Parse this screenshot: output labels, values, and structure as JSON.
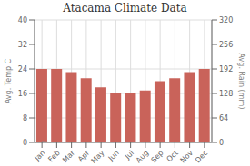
{
  "chart_data": {
    "type": "bar",
    "title": "Atacama Climate Data",
    "categories": [
      "Jan",
      "Feb",
      "Mar",
      "Apr",
      "May",
      "Jun",
      "Jul",
      "Aug",
      "Sep",
      "Oct",
      "Nov",
      "Dec"
    ],
    "series": [
      {
        "type": "bar",
        "color": "#c9635a",
        "values": [
          24,
          24,
          23,
          21,
          18,
          16,
          16,
          17,
          20,
          21,
          23,
          24
        ]
      },
      {
        "type": "line",
        "color": "#4aacb8",
        "axis": "y2",
        "values": [
          1,
          0,
          0,
          0,
          0,
          0,
          0,
          0,
          0,
          0,
          0,
          0
        ]
      }
    ],
    "y_label": "Avg. Temp C",
    "y2_label": "Avg. Rain (mm)",
    "ylim": [
      0,
      40
    ],
    "yticks": [
      0,
      8,
      16,
      24,
      32,
      40
    ],
    "y2lim": [
      0,
      320
    ],
    "y2ticks": [
      0,
      64,
      128,
      192,
      256,
      320
    ],
    "grid": true
  }
}
